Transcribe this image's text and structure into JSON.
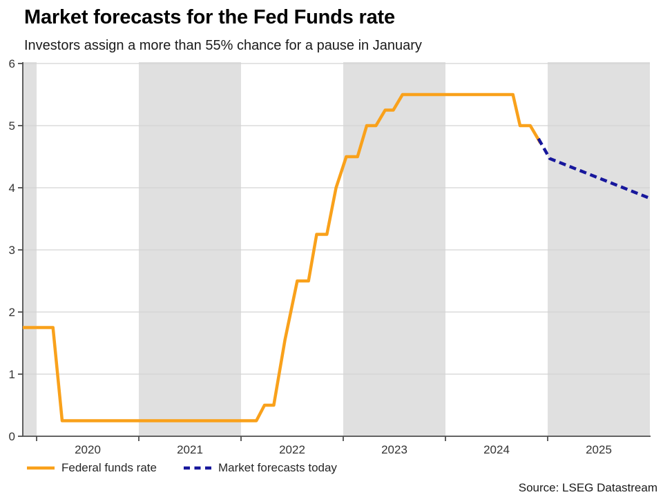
{
  "chart_data": {
    "type": "line",
    "title": "Market forecasts for the Fed Funds rate",
    "subtitle": "Investors assign a more than 55% chance for a pause in January",
    "source": "Source: LSEG Datastream",
    "x_axis": {
      "range": [
        2019.865,
        2026.0
      ],
      "ticks": [
        2020,
        2021,
        2022,
        2023,
        2024,
        2025
      ],
      "labels": [
        "2020",
        "2021",
        "2022",
        "2023",
        "2024",
        "2025"
      ],
      "label_position": "centered-between-ticks"
    },
    "y_axis": {
      "range": [
        0,
        6
      ],
      "ticks": [
        0,
        1,
        2,
        3,
        4,
        5,
        6
      ],
      "gridline_values": [
        1,
        2,
        3,
        4,
        5,
        6
      ]
    },
    "grid": "horizontal",
    "legend_position": "bottom-left",
    "shaded_bands": [
      [
        2019.865,
        2020.0
      ],
      [
        2021.0,
        2022.0
      ],
      [
        2023.0,
        2024.0
      ],
      [
        2025.0,
        2026.0
      ]
    ],
    "series": [
      {
        "name": "Federal funds rate",
        "style": "solid",
        "color": "#F9A11B",
        "points": [
          [
            2019.865,
            1.75
          ],
          [
            2020.16,
            1.75
          ],
          [
            2020.25,
            0.25
          ],
          [
            2022.15,
            0.25
          ],
          [
            2022.23,
            0.5
          ],
          [
            2022.32,
            0.5
          ],
          [
            2022.43,
            1.55
          ],
          [
            2022.55,
            2.5
          ],
          [
            2022.66,
            2.5
          ],
          [
            2022.74,
            3.25
          ],
          [
            2022.84,
            3.25
          ],
          [
            2022.93,
            4.0
          ],
          [
            2023.03,
            4.5
          ],
          [
            2023.14,
            4.5
          ],
          [
            2023.23,
            5.0
          ],
          [
            2023.32,
            5.0
          ],
          [
            2023.41,
            5.25
          ],
          [
            2023.49,
            5.25
          ],
          [
            2023.58,
            5.5
          ],
          [
            2024.66,
            5.5
          ],
          [
            2024.73,
            5.0
          ],
          [
            2024.83,
            5.0
          ],
          [
            2024.93,
            4.72
          ]
        ]
      },
      {
        "name": "Market forecasts today",
        "style": "dashed",
        "color": "#17179C",
        "points": [
          [
            2024.91,
            4.79
          ],
          [
            2025.02,
            4.47
          ],
          [
            2026.0,
            3.83
          ]
        ]
      }
    ]
  },
  "colors": {
    "band": "#E0E0E0",
    "gridline": "#D3D3D3",
    "axis": "#4D4D4D",
    "tick_text": "#333333"
  }
}
